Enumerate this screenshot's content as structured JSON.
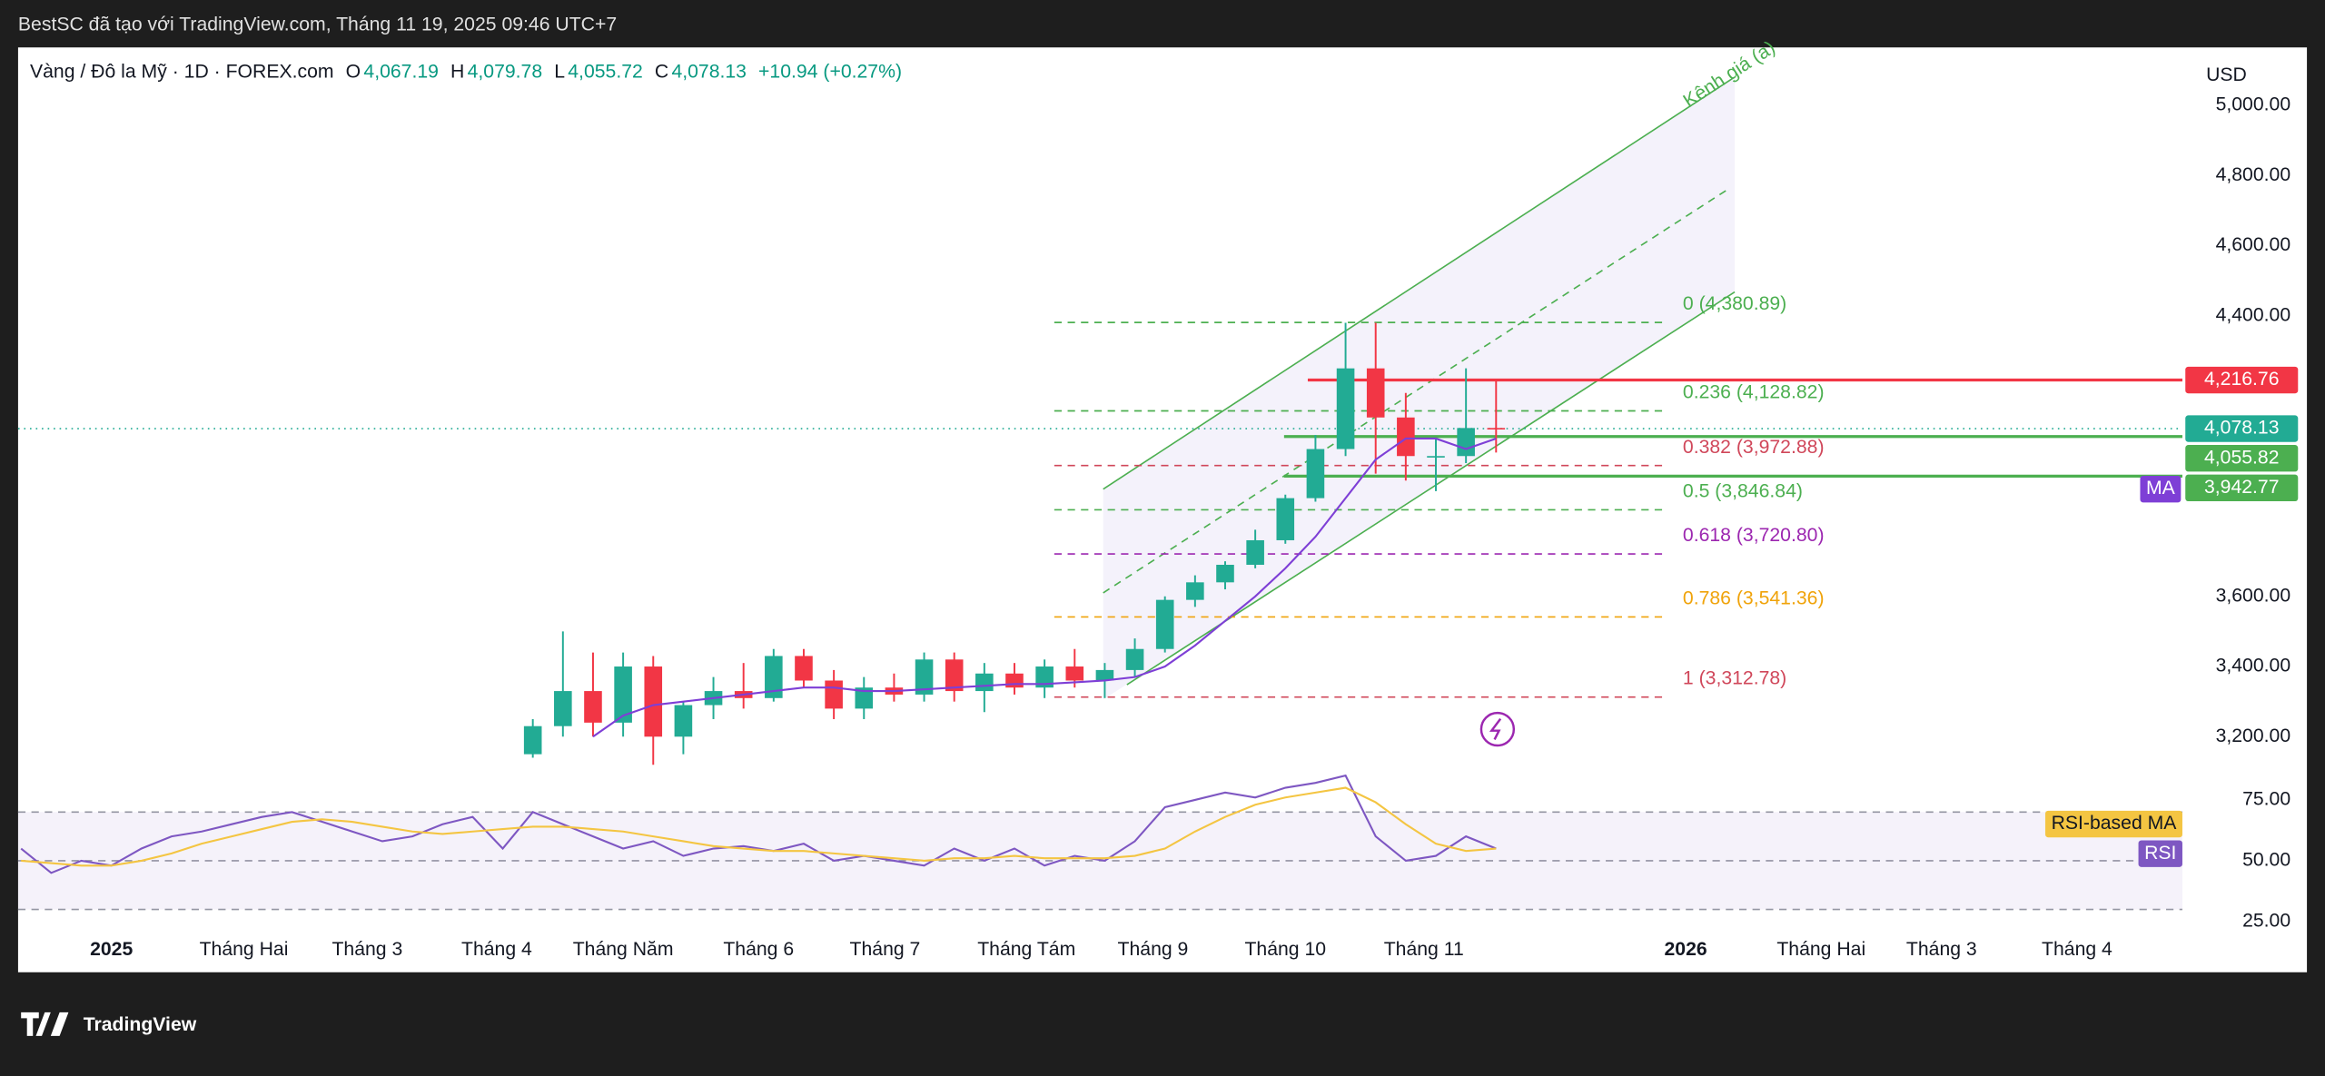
{
  "header": {
    "title": "BestSC đã tạo với TradingView.com, Tháng 11 19, 2025 09:46 UTC+7"
  },
  "legend": {
    "symbol": "Vàng / Đô la Mỹ · 1D · FOREX.com",
    "fields": [
      {
        "key": "O",
        "value": "4,067.19"
      },
      {
        "key": "H",
        "value": "4,079.78"
      },
      {
        "key": "L",
        "value": "4,055.72"
      },
      {
        "key": "C",
        "value": "4,078.13"
      }
    ],
    "change": "+10.94 (+0.27%)"
  },
  "footer": {
    "brand": "TradingView"
  },
  "chart_data": [
    {
      "type": "candlestick",
      "currency": "USD",
      "channel_label": "Kênh giá (a)",
      "x": [
        14,
        15,
        16,
        17,
        18,
        19,
        20,
        21,
        22,
        23,
        24,
        25,
        26,
        27,
        28,
        29,
        30,
        31,
        32,
        33,
        34,
        35,
        36,
        37,
        38,
        39,
        40,
        41,
        42,
        43,
        44,
        45,
        46
      ],
      "open": [
        3150,
        3230,
        3330,
        3240,
        3400,
        3200,
        3290,
        3330,
        3310,
        3430,
        3360,
        3280,
        3340,
        3320,
        3420,
        3330,
        3380,
        3340,
        3400,
        3360,
        3390,
        3450,
        3590,
        3640,
        3690,
        3760,
        3880,
        4020,
        4250,
        4110,
        4000,
        4000,
        4080
      ],
      "high": [
        3250,
        3500,
        3440,
        3440,
        3430,
        3300,
        3370,
        3410,
        3450,
        3450,
        3390,
        3370,
        3380,
        3440,
        3440,
        3410,
        3410,
        3420,
        3450,
        3410,
        3480,
        3600,
        3660,
        3700,
        3790,
        3890,
        4060,
        4380,
        4380,
        4180,
        4050,
        4250,
        4216
      ],
      "low": [
        3140,
        3200,
        3200,
        3200,
        3120,
        3150,
        3250,
        3280,
        3300,
        3340,
        3250,
        3250,
        3300,
        3300,
        3300,
        3270,
        3320,
        3310,
        3340,
        3310,
        3370,
        3440,
        3570,
        3620,
        3680,
        3750,
        3870,
        4000,
        3950,
        3930,
        3900,
        3980,
        4010
      ],
      "close": [
        3230,
        3330,
        3240,
        3400,
        3200,
        3290,
        3330,
        3310,
        3430,
        3360,
        3280,
        3340,
        3320,
        3420,
        3330,
        3380,
        3340,
        3400,
        3360,
        3390,
        3450,
        3590,
        3640,
        3690,
        3760,
        3880,
        4020,
        4250,
        4110,
        4000,
        4000,
        4080,
        4078.13
      ],
      "up_color": "#22ab94",
      "down_color": "#f23645",
      "ma": {
        "name": "MA",
        "color": "#7e3fd6",
        "values": [
          null,
          null,
          3200,
          3260,
          3290,
          3300,
          3310,
          3320,
          3330,
          3340,
          3340,
          3330,
          3330,
          3335,
          3340,
          3345,
          3350,
          3350,
          3355,
          3360,
          3370,
          3400,
          3460,
          3530,
          3600,
          3680,
          3770,
          3880,
          3990,
          4050,
          4050,
          4020,
          4050
        ]
      },
      "xlim": [
        -3.1,
        68.8
      ],
      "ylim": [
        3103,
        5165
      ],
      "xticks": [
        {
          "value": 0,
          "label": "2025"
        },
        {
          "value": 4.4,
          "label": "Tháng Hai"
        },
        {
          "value": 8.5,
          "label": "Tháng 3"
        },
        {
          "value": 12.8,
          "label": "Tháng 4"
        },
        {
          "value": 17,
          "label": "Tháng Năm"
        },
        {
          "value": 21.5,
          "label": "Tháng 6"
        },
        {
          "value": 25.7,
          "label": "Tháng 7"
        },
        {
          "value": 30.4,
          "label": "Tháng Tám"
        },
        {
          "value": 34.6,
          "label": "Tháng 9"
        },
        {
          "value": 39,
          "label": "Tháng 10"
        },
        {
          "value": 43.6,
          "label": "Tháng 11"
        },
        {
          "value": 52.3,
          "label": "2026"
        },
        {
          "value": 56.8,
          "label": "Tháng Hai"
        },
        {
          "value": 60.8,
          "label": "Tháng 3"
        },
        {
          "value": 65.3,
          "label": "Tháng 4"
        }
      ],
      "yticks": [
        {
          "value": 5000,
          "label": "5,000.00"
        },
        {
          "value": 4800,
          "label": "4,800.00"
        },
        {
          "value": 4600,
          "label": "4,600.00"
        },
        {
          "value": 4400,
          "label": "4,400.00"
        },
        {
          "value": 3600,
          "label": "3,600.00"
        },
        {
          "value": 3400,
          "label": "3,400.00"
        },
        {
          "value": 3200,
          "label": "3,200.00"
        }
      ],
      "fib_levels": [
        {
          "label": "0 (4,380.89)",
          "value": 4380.89,
          "color": "#4caf50"
        },
        {
          "label": "0.236 (4,128.82)",
          "value": 4128.82,
          "color": "#4caf50"
        },
        {
          "label": "0.382 (3,972.88)",
          "value": 3972.88,
          "color": "#d0475a"
        },
        {
          "label": "0.5 (3,846.84)",
          "value": 3846.84,
          "color": "#4caf50"
        },
        {
          "label": "0.618 (3,720.80)",
          "value": 3720.8,
          "color": "#9c27b0"
        },
        {
          "label": "0.786 (3,541.36)",
          "value": 3541.36,
          "color": "#f0a30a"
        },
        {
          "label": "1 (3,312.78)",
          "value": 3312.78,
          "color": "#d0475a"
        }
      ],
      "price_lines": [
        {
          "label": "4,216.76",
          "value": 4216.76,
          "color": "#f23645"
        },
        {
          "label": "4,078.13",
          "value": 4078.13,
          "color": "#22ab94"
        },
        {
          "label": "4,055.82",
          "value": 4055.82,
          "color": "#4caf50"
        },
        {
          "label": "3,942.77",
          "value": 3942.77,
          "color": "#4caf50"
        }
      ]
    },
    {
      "type": "line",
      "x": [
        -3,
        -2,
        -1,
        0,
        1,
        2,
        3,
        4,
        5,
        6,
        7,
        8,
        9,
        10,
        11,
        12,
        13,
        14,
        15,
        16,
        17,
        18,
        19,
        20,
        21,
        22,
        23,
        24,
        25,
        26,
        27,
        28,
        29,
        30,
        31,
        32,
        33,
        34,
        35,
        36,
        37,
        38,
        39,
        40,
        41,
        42,
        43,
        44,
        45,
        46
      ],
      "series": [
        {
          "name": "RSI",
          "color": "#7e57c2",
          "values": [
            55,
            45,
            50,
            48,
            55,
            60,
            62,
            65,
            68,
            70,
            66,
            62,
            58,
            60,
            65,
            68,
            55,
            70,
            65,
            60,
            55,
            58,
            52,
            55,
            56,
            54,
            57,
            50,
            52,
            50,
            48,
            55,
            50,
            55,
            48,
            52,
            50,
            58,
            72,
            75,
            78,
            76,
            80,
            82,
            85,
            60,
            50,
            52,
            60,
            55
          ]
        },
        {
          "name": "RSI-based MA",
          "color": "#f4c542",
          "values": [
            50,
            49,
            48,
            48,
            50,
            53,
            57,
            60,
            63,
            66,
            67,
            66,
            64,
            62,
            61,
            62,
            63,
            64,
            64,
            63,
            62,
            60,
            58,
            56,
            55,
            54,
            54,
            53,
            52,
            51,
            50,
            51,
            51,
            52,
            51,
            51,
            51,
            52,
            55,
            62,
            68,
            73,
            76,
            78,
            80,
            74,
            65,
            57,
            54,
            55
          ]
        }
      ],
      "bands": [
        70,
        50,
        30
      ],
      "ylim": [
        20,
        87
      ],
      "yticks": [
        {
          "value": 75,
          "label": "75.00"
        },
        {
          "value": 50,
          "label": "50.00"
        },
        {
          "value": 25,
          "label": "25.00"
        }
      ]
    }
  ]
}
